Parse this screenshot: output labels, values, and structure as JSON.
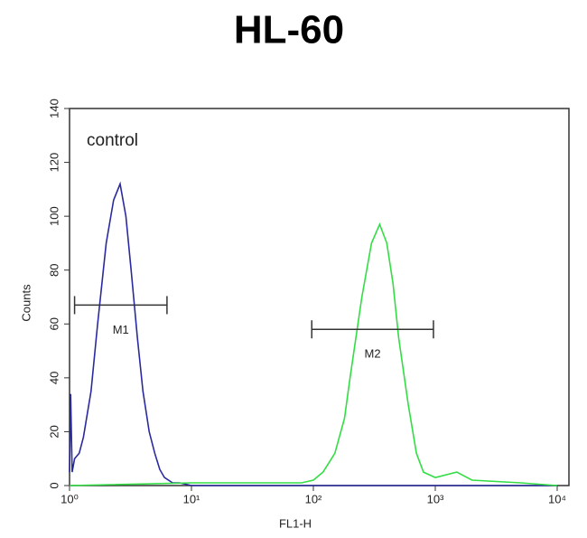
{
  "chart_data": {
    "type": "line",
    "title": "HL-60",
    "x_label": "FL1-H",
    "y_label": "Counts",
    "x_scale": "log",
    "xlim": [
      1,
      10000
    ],
    "xticks": [
      {
        "value": 1,
        "label": "10⁰"
      },
      {
        "value": 10,
        "label": "10¹"
      },
      {
        "value": 100,
        "label": "10²"
      },
      {
        "value": 1000,
        "label": "10³"
      },
      {
        "value": 10000,
        "label": "10⁴"
      }
    ],
    "ylim": [
      0,
      140
    ],
    "yticks": [
      0,
      20,
      40,
      60,
      80,
      100,
      120,
      140
    ],
    "annotation": "control",
    "series": [
      {
        "color": "#2a2aa0",
        "x": [
          1,
          1.02,
          1.05,
          1.1,
          1.2,
          1.3,
          1.5,
          1.7,
          2.0,
          2.3,
          2.6,
          2.9,
          3.2,
          3.6,
          4.0,
          4.5,
          5.0,
          5.5,
          6.0,
          7,
          8,
          10,
          20,
          100,
          1000,
          10000
        ],
        "values": [
          5,
          34,
          5,
          10,
          12,
          18,
          35,
          60,
          90,
          106,
          112,
          100,
          80,
          55,
          35,
          20,
          12,
          6,
          3,
          1,
          1,
          0,
          0,
          0,
          0,
          0
        ]
      },
      {
        "color": "#33dd44",
        "x": [
          1,
          10,
          20,
          50,
          80,
          100,
          120,
          150,
          180,
          200,
          250,
          300,
          350,
          400,
          450,
          500,
          600,
          700,
          800,
          1000,
          1500,
          2000,
          5000,
          10000
        ],
        "values": [
          0,
          1,
          1,
          1,
          1,
          2,
          5,
          12,
          25,
          40,
          70,
          90,
          97,
          90,
          75,
          55,
          30,
          12,
          5,
          3,
          5,
          2,
          1,
          0
        ]
      }
    ],
    "gates": [
      {
        "label": "M1",
        "x": [
          1.1,
          6.3
        ],
        "y": 67
      },
      {
        "label": "M2",
        "x": [
          97,
          966
        ],
        "y": 58
      }
    ]
  }
}
